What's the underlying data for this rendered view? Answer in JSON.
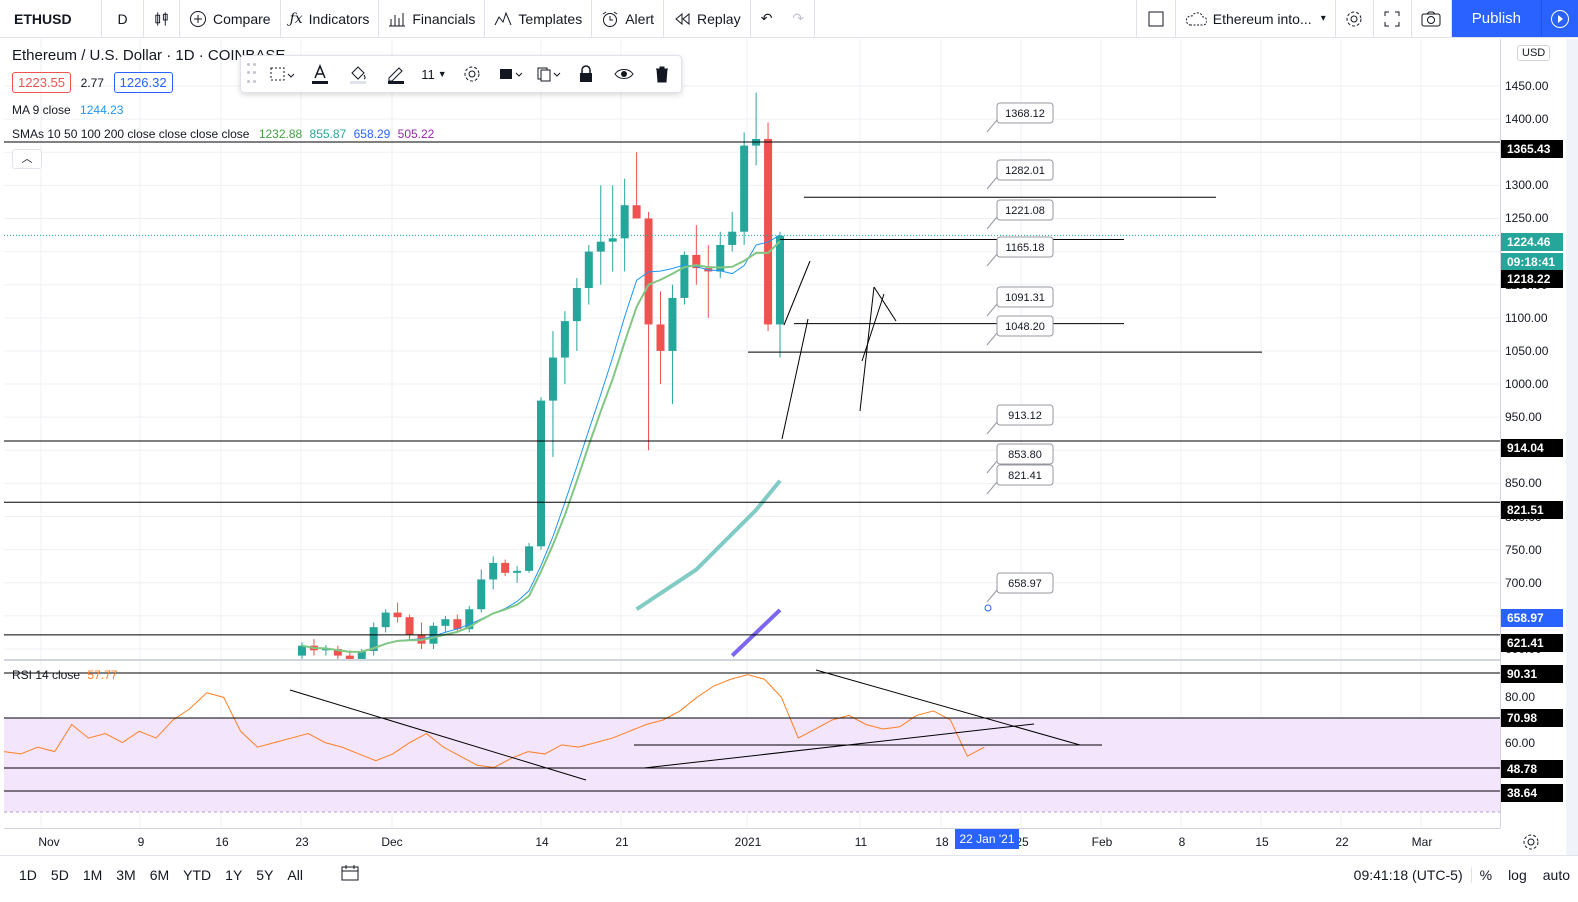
{
  "topbar": {
    "symbol": "ETHUSD",
    "interval": "D",
    "compare": "Compare",
    "indicators": "Indicators",
    "financials": "Financials",
    "templates": "Templates",
    "alert": "Alert",
    "replay": "Replay",
    "layout_name": "Ethereum into...",
    "publish": "Publish"
  },
  "legend": {
    "title": "Ethereum / U.S. Dollar · 1D · COINBASE",
    "bid": "1223.55",
    "spread": "2.77",
    "ask": "1226.32",
    "ma_label": "MA 9 close",
    "ma_value": "1244.23",
    "sma_label": "SMAs 10 50 100 200 close close close close",
    "sma_values": [
      "1232.88",
      "855.87",
      "658.29",
      "505.22"
    ],
    "rsi_label": "RSI 14 close",
    "rsi_value": "57.77"
  },
  "drawing_toolbar": {
    "line_width": "11"
  },
  "price_axis": {
    "currency": "USD",
    "ticks": [
      "1450.00",
      "1400.00",
      "1350.00",
      "1300.00",
      "1250.00",
      "1150.00",
      "1100.00",
      "1050.00",
      "1000.00",
      "950.00",
      "850.00",
      "800.00",
      "750.00",
      "700.00",
      "600.00"
    ],
    "badges": [
      {
        "text": "1365.43",
        "color": "#000000"
      },
      {
        "text": "1224.46",
        "color": "#26a69a"
      },
      {
        "text": "09:18:41",
        "color": "#26a69a"
      },
      {
        "text": "1218.22",
        "color": "#000000"
      },
      {
        "text": "914.04",
        "color": "#000000"
      },
      {
        "text": "821.51",
        "color": "#000000"
      },
      {
        "text": "658.97",
        "color": "#2962ff"
      },
      {
        "text": "621.41",
        "color": "#000000"
      }
    ],
    "rsi_ticks": [
      "80.00",
      "60.00"
    ],
    "rsi_badges": [
      "90.31",
      "70.98",
      "48.78",
      "38.64"
    ]
  },
  "callouts": [
    "1368.12",
    "1282.01",
    "1221.08",
    "1165.18",
    "1091.31",
    "1048.20",
    "913.12",
    "853.80",
    "821.41",
    "658.97"
  ],
  "time_axis": {
    "labels": [
      "Nov",
      "9",
      "16",
      "23",
      "Dec",
      "14",
      "21",
      "2021",
      "11",
      "18",
      "25",
      "Feb",
      "8",
      "15",
      "22",
      "Mar"
    ],
    "cursor": "22 Jan '21"
  },
  "bottombar": {
    "ranges": [
      "1D",
      "5D",
      "1M",
      "3M",
      "6M",
      "YTD",
      "1Y",
      "5Y",
      "All"
    ],
    "clock": "09:41:18 (UTC-5)",
    "percent": "%",
    "log": "log",
    "auto": "auto"
  },
  "colors": {
    "up": "#26a69a",
    "down": "#ef5350",
    "accent": "#2962ff",
    "rsi": "#ff7f24",
    "rsi_band": "#f3e5fc"
  },
  "chart_data": {
    "type": "candlestick",
    "symbol": "ETHUSD",
    "interval": "1D",
    "ylim": [
      580,
      1470
    ],
    "ohlc": [
      [
        590,
        610,
        585,
        605
      ],
      [
        605,
        615,
        590,
        598
      ],
      [
        598,
        606,
        590,
        600
      ],
      [
        600,
        605,
        585,
        590
      ],
      [
        590,
        598,
        580,
        585
      ],
      [
        585,
        600,
        580,
        597
      ],
      [
        597,
        640,
        590,
        633
      ],
      [
        633,
        660,
        625,
        655
      ],
      [
        655,
        670,
        640,
        648
      ],
      [
        648,
        652,
        615,
        622
      ],
      [
        622,
        640,
        600,
        608
      ],
      [
        608,
        640,
        600,
        635
      ],
      [
        635,
        650,
        625,
        645
      ],
      [
        645,
        652,
        625,
        630
      ],
      [
        630,
        665,
        625,
        660
      ],
      [
        660,
        720,
        655,
        705
      ],
      [
        705,
        740,
        690,
        730
      ],
      [
        730,
        735,
        710,
        715
      ],
      [
        715,
        725,
        700,
        718
      ],
      [
        718,
        760,
        715,
        755
      ],
      [
        755,
        980,
        750,
        975
      ],
      [
        975,
        1080,
        890,
        1040
      ],
      [
        1040,
        1110,
        1000,
        1095
      ],
      [
        1095,
        1160,
        1050,
        1145
      ],
      [
        1145,
        1210,
        1120,
        1200
      ],
      [
        1200,
        1300,
        1150,
        1215
      ],
      [
        1215,
        1300,
        1170,
        1220
      ],
      [
        1220,
        1310,
        1170,
        1270
      ],
      [
        1270,
        1350,
        1250,
        1250
      ],
      [
        1250,
        1260,
        900,
        1090
      ],
      [
        1090,
        1140,
        1000,
        1050
      ],
      [
        1050,
        1150,
        970,
        1130
      ],
      [
        1130,
        1200,
        1120,
        1195
      ],
      [
        1195,
        1240,
        1150,
        1175
      ],
      [
        1175,
        1210,
        1100,
        1170
      ],
      [
        1170,
        1230,
        1160,
        1210
      ],
      [
        1210,
        1260,
        1200,
        1230
      ],
      [
        1230,
        1380,
        1210,
        1360
      ],
      [
        1360,
        1440,
        1330,
        1370
      ],
      [
        1370,
        1395,
        1080,
        1090
      ],
      [
        1090,
        1230,
        1040,
        1224
      ]
    ],
    "horizontal_lines": [
      1365.43,
      1282.01,
      1218.22,
      1091.31,
      1048.2,
      914.04,
      821.51,
      621.41
    ],
    "sma_50": [
      [
        28,
        660
      ],
      [
        33,
        720
      ],
      [
        38,
        810
      ],
      [
        40,
        854
      ]
    ],
    "sma_100": [
      [
        36,
        590
      ],
      [
        40,
        659
      ]
    ],
    "rsi": [
      56,
      55,
      58,
      56,
      68,
      62,
      64,
      60,
      65,
      62,
      70,
      75,
      82,
      80,
      65,
      58,
      60,
      62,
      64,
      60,
      58,
      55,
      52,
      55,
      60,
      64,
      58,
      54,
      50,
      49,
      53,
      56,
      55,
      59,
      58,
      60,
      62,
      65,
      68,
      70,
      74,
      80,
      85,
      88,
      90,
      88,
      80,
      62,
      66,
      70,
      72,
      68,
      66,
      67,
      72,
      74,
      70,
      54,
      58
    ]
  }
}
